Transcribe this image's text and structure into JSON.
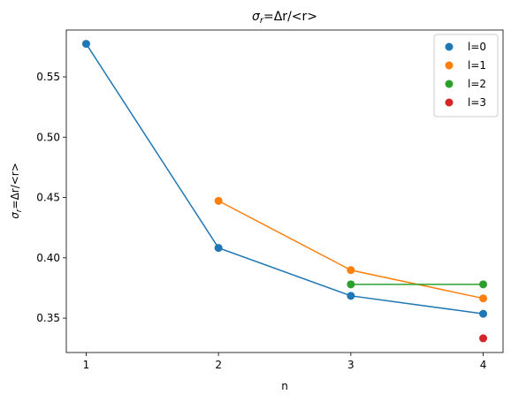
{
  "chart_data": {
    "type": "scatter",
    "title_main": "σ",
    "title_sub": "r",
    "title_rest": "=Δr/<r>",
    "xlabel": "n",
    "ylabel_main": "σ",
    "ylabel_sub": "r",
    "ylabel_rest": "=Δr/<r>",
    "xlim": [
      0.85,
      4.15
    ],
    "ylim": [
      0.3215,
      0.5888
    ],
    "x_ticks": [
      1,
      2,
      3,
      4
    ],
    "y_ticks": [
      0.35,
      0.4,
      0.45,
      0.5,
      0.55
    ],
    "y_tick_labels": [
      "0.35",
      "0.40",
      "0.45",
      "0.50",
      "0.55"
    ],
    "legend_position": "top-right",
    "series": [
      {
        "name": "l=0",
        "color": "#1f77b4",
        "x": [
          1,
          2,
          3,
          4
        ],
        "y": [
          0.5774,
          0.4082,
          0.3685,
          0.3536
        ]
      },
      {
        "name": "l=1",
        "color": "#ff7f0e",
        "x": [
          2,
          3,
          4
        ],
        "y": [
          0.4472,
          0.3898,
          0.3664
        ]
      },
      {
        "name": "l=2",
        "color": "#2ca02c",
        "x": [
          3,
          4
        ],
        "y": [
          0.378,
          0.378
        ]
      },
      {
        "name": "l=3",
        "color": "#d62728",
        "x": [
          4
        ],
        "y": [
          0.3333
        ]
      }
    ]
  }
}
